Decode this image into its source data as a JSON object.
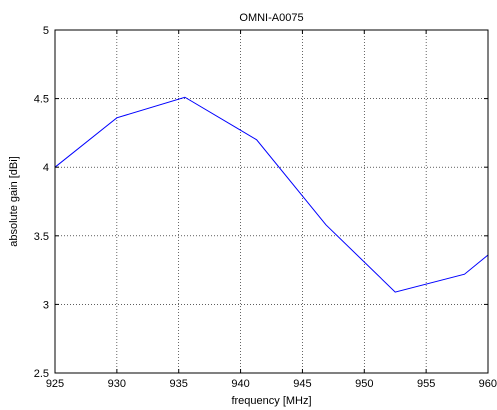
{
  "chart_data": {
    "type": "line",
    "title": "OMNI-A0075",
    "xlabel": "frequency [MHz]",
    "ylabel": "absolute gain [dBi]",
    "xlim": [
      925,
      960
    ],
    "ylim": [
      2.5,
      5
    ],
    "xticks": [
      925,
      930,
      935,
      940,
      945,
      950,
      955,
      960
    ],
    "yticks": [
      2.5,
      3,
      3.5,
      4,
      4.5,
      5
    ],
    "xtick_labels": [
      "925",
      "930",
      "935",
      "940",
      "945",
      "950",
      "955",
      "960"
    ],
    "ytick_labels": [
      "2.5",
      "3",
      "3.5",
      "4",
      "4.5",
      "5"
    ],
    "grid": true,
    "series": [
      {
        "color": "#0000ff",
        "x": [
          925,
          930,
          935.5,
          941.3,
          946.9,
          952.5,
          958.1,
          960
        ],
        "y": [
          4.0,
          4.36,
          4.51,
          4.2,
          3.58,
          3.09,
          3.22,
          3.36
        ]
      }
    ]
  }
}
